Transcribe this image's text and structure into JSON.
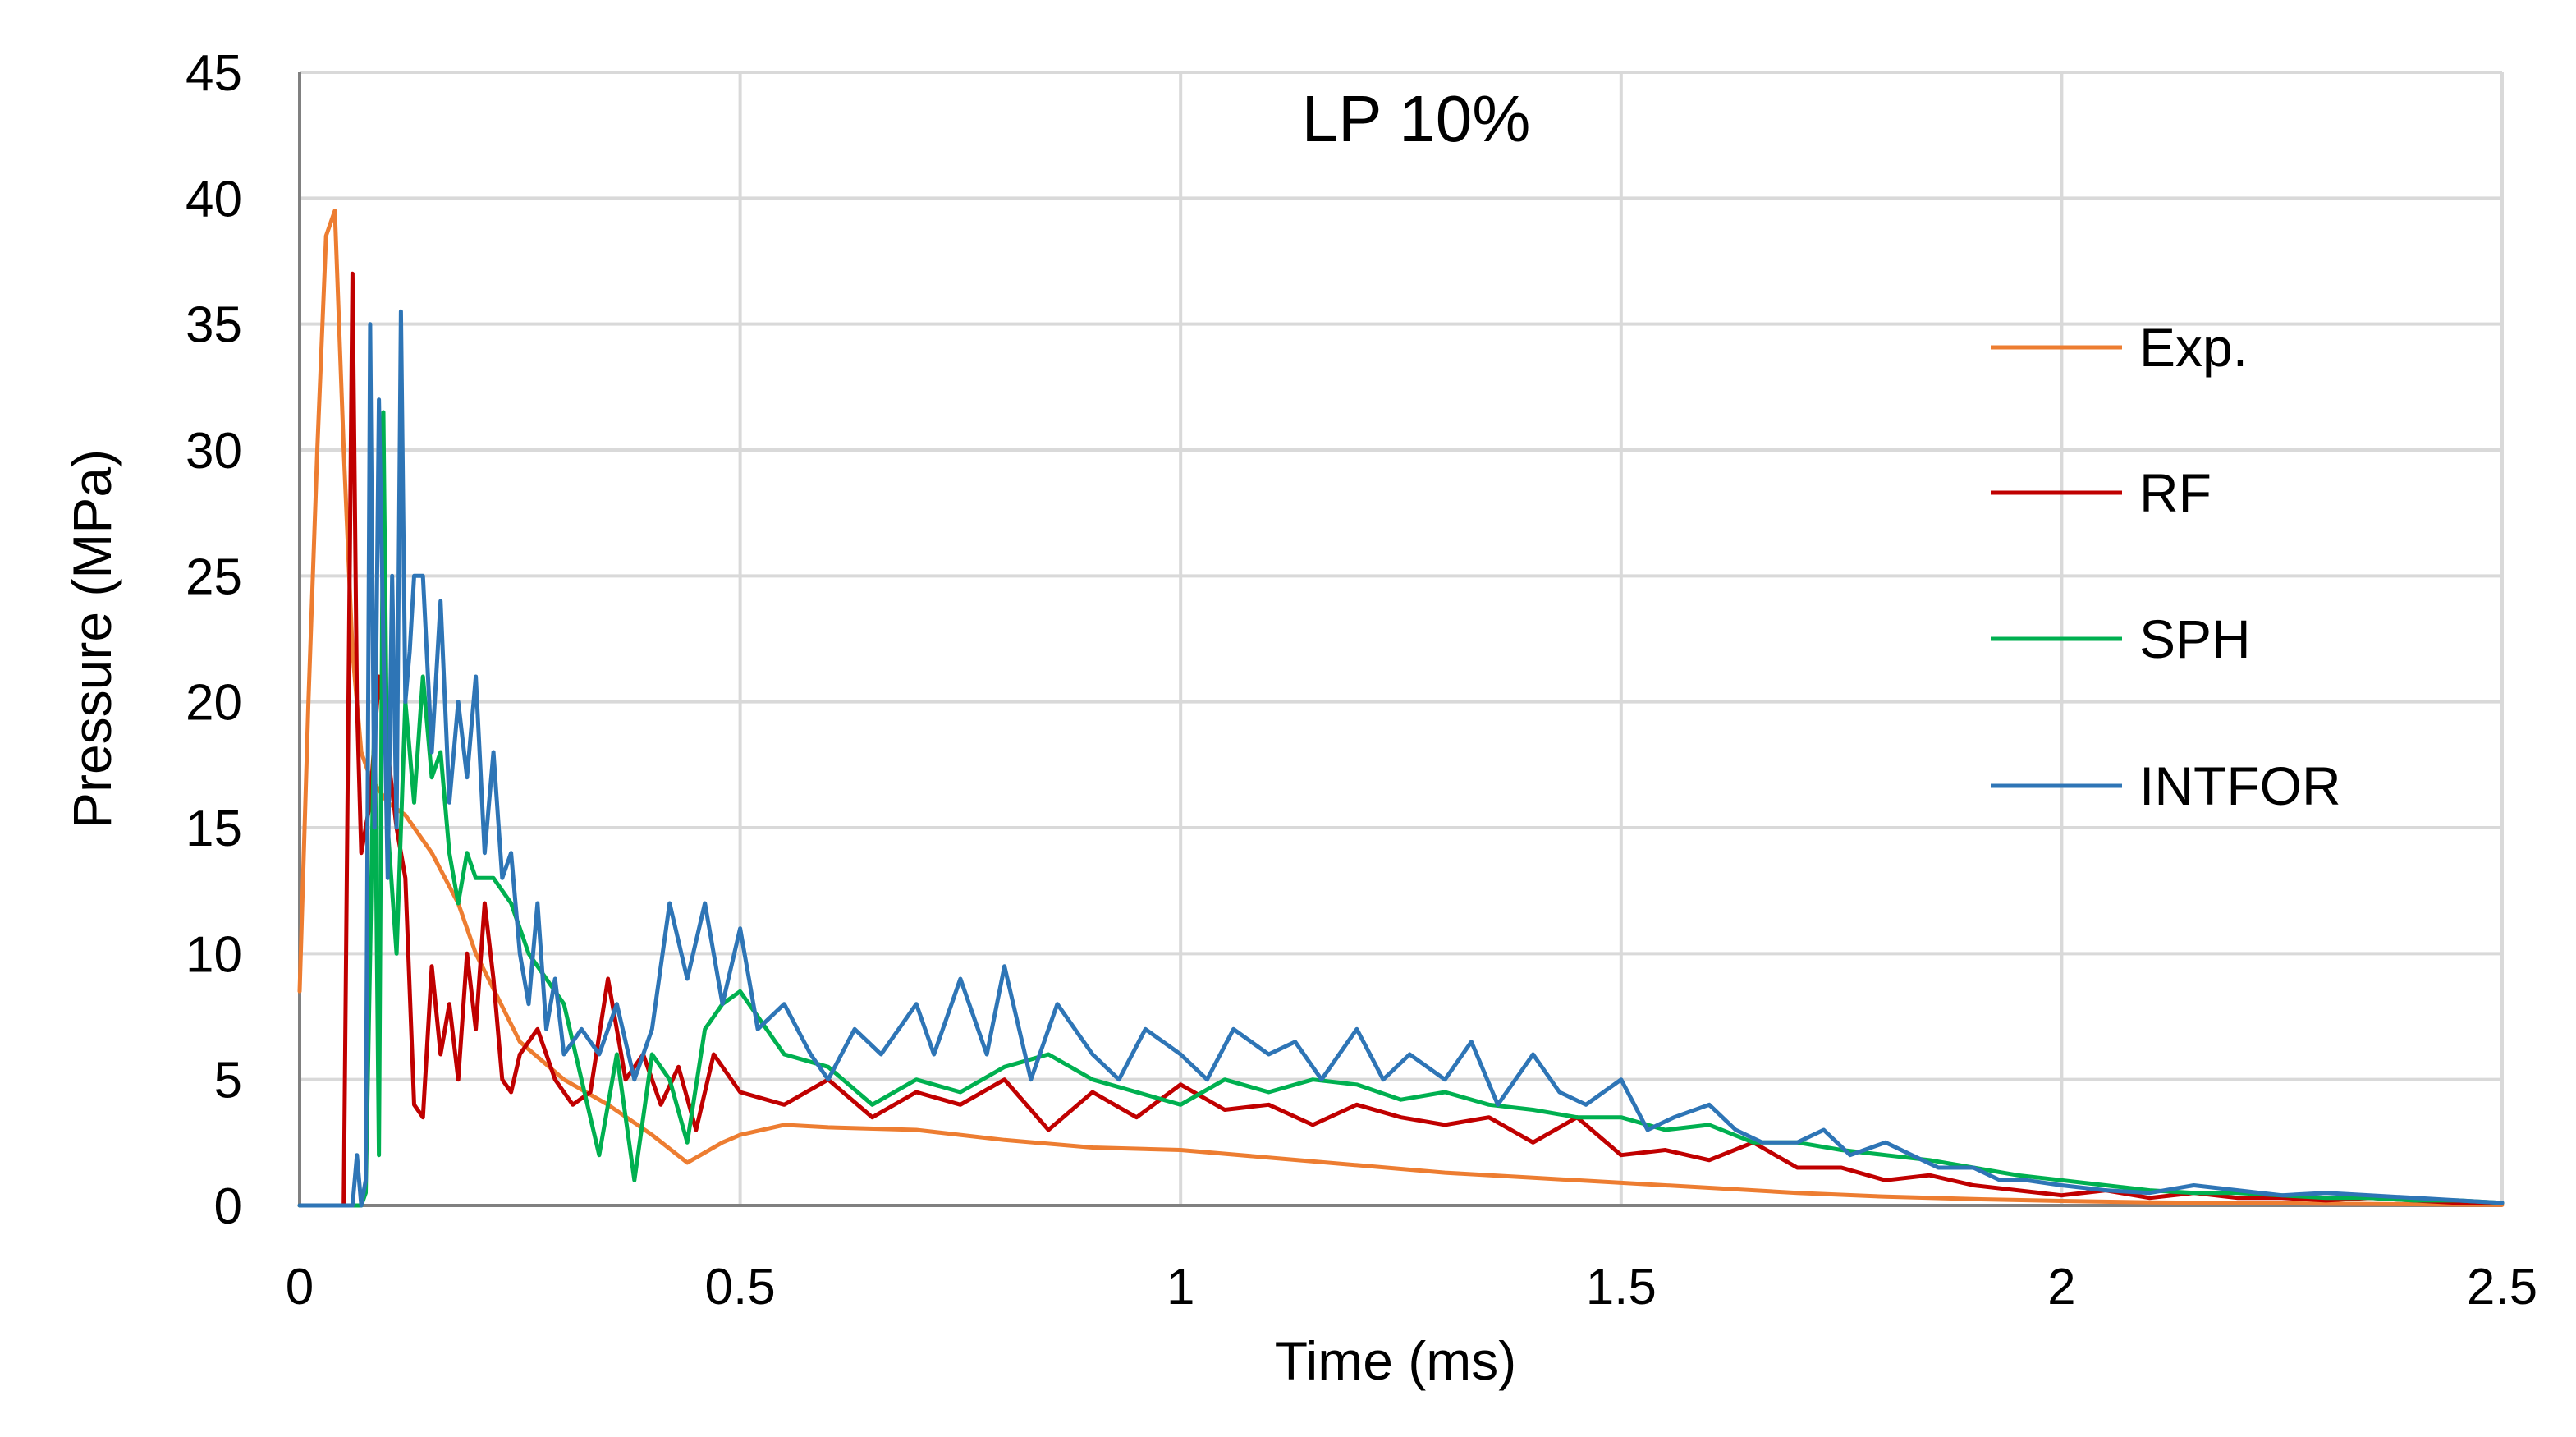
{
  "chart_data": {
    "type": "line",
    "title": "LP 10%",
    "xlabel": "Time (ms)",
    "ylabel": "Pressure (MPa)",
    "xlim": [
      0,
      2.5
    ],
    "ylim": [
      0,
      45
    ],
    "x_ticks": [
      0,
      0.5,
      1,
      1.5,
      2,
      2.5
    ],
    "x_tick_labels": [
      "0",
      "0.5",
      "1",
      "1.5",
      "2",
      "2.5"
    ],
    "y_ticks": [
      0,
      5,
      10,
      15,
      20,
      25,
      30,
      35,
      40,
      45
    ],
    "y_tick_labels": [
      "0",
      "5",
      "10",
      "15",
      "20",
      "25",
      "30",
      "35",
      "40",
      "45"
    ],
    "grid": true,
    "legend_position": "right",
    "series": [
      {
        "name": "Exp.",
        "color": "#ed7d31",
        "x": [
          0,
          0.01,
          0.02,
          0.03,
          0.04,
          0.05,
          0.06,
          0.07,
          0.08,
          0.1,
          0.12,
          0.15,
          0.18,
          0.2,
          0.25,
          0.3,
          0.35,
          0.4,
          0.44,
          0.48,
          0.5,
          0.55,
          0.6,
          0.7,
          0.8,
          0.9,
          1.0,
          1.1,
          1.2,
          1.3,
          1.4,
          1.5,
          1.6,
          1.7,
          1.8,
          1.9,
          2.0,
          2.1,
          2.2,
          2.3,
          2.4,
          2.5
        ],
        "y": [
          8.5,
          20,
          30,
          38.5,
          39.5,
          30,
          22,
          18,
          17,
          16,
          15.5,
          14,
          12,
          10,
          6.5,
          5,
          4,
          2.8,
          1.7,
          2.5,
          2.8,
          3.2,
          3.1,
          3,
          2.6,
          2.3,
          2.2,
          1.9,
          1.6,
          1.3,
          1.1,
          0.9,
          0.7,
          0.5,
          0.35,
          0.25,
          0.18,
          0.12,
          0.1,
          0.07,
          0.05,
          0.02
        ]
      },
      {
        "name": "RF",
        "color": "#c00000",
        "x": [
          0,
          0.04,
          0.05,
          0.06,
          0.065,
          0.07,
          0.08,
          0.09,
          0.1,
          0.11,
          0.12,
          0.13,
          0.14,
          0.15,
          0.16,
          0.17,
          0.18,
          0.19,
          0.2,
          0.21,
          0.22,
          0.23,
          0.24,
          0.25,
          0.27,
          0.29,
          0.31,
          0.33,
          0.35,
          0.37,
          0.39,
          0.41,
          0.43,
          0.45,
          0.47,
          0.5,
          0.55,
          0.6,
          0.65,
          0.7,
          0.75,
          0.8,
          0.85,
          0.9,
          0.95,
          1.0,
          1.05,
          1.1,
          1.15,
          1.2,
          1.25,
          1.3,
          1.35,
          1.4,
          1.45,
          1.5,
          1.55,
          1.6,
          1.65,
          1.7,
          1.75,
          1.8,
          1.85,
          1.9,
          1.95,
          2.0,
          2.05,
          2.1,
          2.15,
          2.2,
          2.25,
          2.3,
          2.35,
          2.4,
          2.45,
          2.5
        ],
        "y": [
          0,
          0,
          0,
          37,
          20,
          14,
          16,
          21,
          18,
          15,
          13,
          4,
          3.5,
          9.5,
          6,
          8,
          5,
          10,
          7,
          12,
          9,
          5,
          4.5,
          6,
          7,
          5,
          4,
          4.5,
          9,
          5,
          6,
          4,
          5.5,
          3,
          6,
          4.5,
          4,
          5,
          3.5,
          4.5,
          4,
          5,
          3,
          4.5,
          3.5,
          4.8,
          3.8,
          4,
          3.2,
          4,
          3.5,
          3.2,
          3.5,
          2.5,
          3.5,
          2,
          2.2,
          1.8,
          2.5,
          1.5,
          1.5,
          1,
          1.2,
          0.8,
          0.6,
          0.4,
          0.6,
          0.3,
          0.5,
          0.3,
          0.3,
          0.2,
          0.3,
          0.2,
          0.1,
          0.1
        ]
      },
      {
        "name": "SPH",
        "color": "#00b050",
        "x": [
          0,
          0.07,
          0.075,
          0.08,
          0.085,
          0.09,
          0.095,
          0.1,
          0.11,
          0.12,
          0.13,
          0.14,
          0.15,
          0.16,
          0.17,
          0.18,
          0.19,
          0.2,
          0.22,
          0.24,
          0.26,
          0.28,
          0.3,
          0.32,
          0.34,
          0.36,
          0.38,
          0.4,
          0.42,
          0.44,
          0.46,
          0.48,
          0.5,
          0.55,
          0.6,
          0.65,
          0.7,
          0.75,
          0.8,
          0.85,
          0.9,
          0.95,
          1.0,
          1.05,
          1.1,
          1.15,
          1.2,
          1.25,
          1.3,
          1.35,
          1.4,
          1.45,
          1.5,
          1.55,
          1.6,
          1.65,
          1.7,
          1.75,
          1.8,
          1.85,
          1.9,
          1.95,
          2.0,
          2.05,
          2.1,
          2.15,
          2.2,
          2.25,
          2.3,
          2.35,
          2.4,
          2.45,
          2.5
        ],
        "y": [
          0,
          0,
          0.5,
          10,
          20,
          2,
          31.5,
          15,
          10,
          20,
          16,
          21,
          17,
          18,
          14,
          12,
          14,
          13,
          13,
          12,
          10,
          9,
          8,
          5,
          2,
          6,
          1,
          6,
          5,
          2.5,
          7,
          8,
          8.5,
          6,
          5.5,
          4,
          5,
          4.5,
          5.5,
          6,
          5,
          4.5,
          4,
          5,
          4.5,
          5,
          4.8,
          4.2,
          4.5,
          4,
          3.8,
          3.5,
          3.5,
          3,
          3.2,
          2.5,
          2.5,
          2.2,
          2,
          1.8,
          1.5,
          1.2,
          1,
          0.8,
          0.6,
          0.5,
          0.5,
          0.4,
          0.3,
          0.3,
          0.2,
          0.2,
          0.1
        ]
      },
      {
        "name": "INTFOR",
        "color": "#2e75b6",
        "x": [
          0,
          0.05,
          0.06,
          0.065,
          0.07,
          0.075,
          0.08,
          0.085,
          0.09,
          0.1,
          0.105,
          0.11,
          0.115,
          0.12,
          0.125,
          0.13,
          0.14,
          0.15,
          0.16,
          0.17,
          0.18,
          0.19,
          0.2,
          0.21,
          0.22,
          0.23,
          0.24,
          0.25,
          0.26,
          0.27,
          0.28,
          0.29,
          0.3,
          0.32,
          0.34,
          0.36,
          0.38,
          0.4,
          0.42,
          0.44,
          0.46,
          0.48,
          0.5,
          0.52,
          0.55,
          0.58,
          0.6,
          0.63,
          0.66,
          0.7,
          0.72,
          0.75,
          0.78,
          0.8,
          0.83,
          0.86,
          0.9,
          0.93,
          0.96,
          1.0,
          1.03,
          1.06,
          1.1,
          1.13,
          1.16,
          1.2,
          1.23,
          1.26,
          1.3,
          1.33,
          1.36,
          1.4,
          1.43,
          1.46,
          1.5,
          1.53,
          1.56,
          1.6,
          1.63,
          1.66,
          1.7,
          1.73,
          1.76,
          1.8,
          1.83,
          1.86,
          1.9,
          1.93,
          1.96,
          2.0,
          2.05,
          2.1,
          2.15,
          2.2,
          2.25,
          2.3,
          2.35,
          2.4,
          2.45,
          2.5
        ],
        "y": [
          0,
          0,
          0,
          2,
          0,
          1,
          35,
          15,
          32,
          13,
          25,
          15,
          35.5,
          20,
          22,
          25,
          25,
          18,
          24,
          16,
          20,
          17,
          21,
          14,
          18,
          13,
          14,
          10,
          8,
          12,
          7,
          9,
          6,
          7,
          6,
          8,
          5,
          7,
          12,
          9,
          12,
          8,
          11,
          7,
          8,
          6,
          5,
          7,
          6,
          8,
          6,
          9,
          6,
          9.5,
          5,
          8,
          6,
          5,
          7,
          6,
          5,
          7,
          6,
          6.5,
          5,
          7,
          5,
          6,
          5,
          6.5,
          4,
          6,
          4.5,
          4,
          5,
          3,
          3.5,
          4,
          3,
          2.5,
          2.5,
          3,
          2,
          2.5,
          2,
          1.5,
          1.5,
          1,
          1,
          0.8,
          0.6,
          0.5,
          0.8,
          0.6,
          0.4,
          0.5,
          0.4,
          0.3,
          0.2,
          0.1
        ]
      }
    ]
  }
}
